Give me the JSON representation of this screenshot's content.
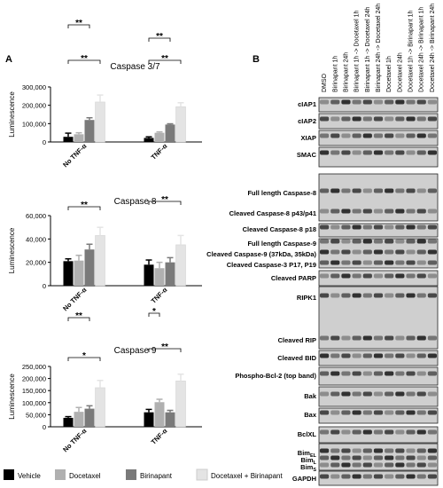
{
  "panel_a_letter": "A",
  "panel_b_letter": "B",
  "chart_data": [
    {
      "type": "bar",
      "title": "Caspase 3/7",
      "ylabel": "Luminescence",
      "groups": [
        "No TNF-α",
        "TNF-α"
      ],
      "series": [
        {
          "name": "Vehicle",
          "values": [
            28000,
            22000
          ],
          "errors": [
            20000,
            6000
          ]
        },
        {
          "name": "Docetaxel",
          "values": [
            42000,
            50000
          ],
          "errors": [
            8000,
            5000
          ]
        },
        {
          "name": "Birinapant",
          "values": [
            120000,
            95000
          ],
          "errors": [
            12000,
            4000
          ]
        },
        {
          "name": "Docetaxel + Birinapant",
          "values": [
            218000,
            192000
          ],
          "errors": [
            38000,
            22000
          ]
        }
      ],
      "ylim": [
        0,
        300000
      ],
      "yticks": [
        "0",
        "100,000",
        "200,000",
        "300,000"
      ],
      "significance": [
        "**",
        "**",
        "**",
        "**"
      ]
    },
    {
      "type": "bar",
      "title": "Caspase 8",
      "ylabel": "Luminescence",
      "groups": [
        "No TNF-α",
        "TNF-α"
      ],
      "series": [
        {
          "name": "Vehicle",
          "values": [
            21000,
            18000
          ],
          "errors": [
            2000,
            4000
          ]
        },
        {
          "name": "Docetaxel",
          "values": [
            21500,
            15000
          ],
          "errors": [
            4500,
            5000
          ]
        },
        {
          "name": "Birinapant",
          "values": [
            31000,
            20000
          ],
          "errors": [
            4500,
            4000
          ]
        },
        {
          "name": "Docetaxel + Birinapant",
          "values": [
            43000,
            35000
          ],
          "errors": [
            7000,
            8000
          ]
        }
      ],
      "ylim": [
        0,
        60000
      ],
      "yticks": [
        "0",
        "20,000",
        "40,000",
        "60,000"
      ],
      "significance": [
        "**",
        "**"
      ]
    },
    {
      "type": "bar",
      "title": "Caspase 9",
      "ylabel": "Luminescence",
      "groups": [
        "No TNF-α",
        "TNF-α"
      ],
      "series": [
        {
          "name": "Vehicle",
          "values": [
            37000,
            60000
          ],
          "errors": [
            5000,
            12000
          ]
        },
        {
          "name": "Docetaxel",
          "values": [
            62000,
            102000
          ],
          "errors": [
            18000,
            12000
          ]
        },
        {
          "name": "Birinapant",
          "values": [
            75000,
            60000
          ],
          "errors": [
            12000,
            8000
          ]
        },
        {
          "name": "Docetaxel + Birinapant",
          "values": [
            162000,
            190000
          ],
          "errors": [
            30000,
            28000
          ]
        }
      ],
      "ylim": [
        0,
        250000
      ],
      "yticks": [
        "0",
        "50,000",
        "100,000",
        "150,000",
        "200,000",
        "250,000"
      ],
      "significance": [
        "*",
        "**",
        "*",
        "**"
      ]
    }
  ],
  "legend": [
    {
      "label": "Vehicle",
      "color": "#000000"
    },
    {
      "label": "Docetaxel",
      "color": "#b0b0b0"
    },
    {
      "label": "Birinapant",
      "color": "#7a7a7a"
    },
    {
      "label": "Docetaxel + Birinapant",
      "color": "#e4e4e4"
    }
  ],
  "blot": {
    "lanes": [
      "DMSO",
      "Birinapant 1h",
      "Birinapant 24h",
      "Birinapant 1h -> Docetaxel 1h",
      "Birinapant 1h -> Docetaxel 24h",
      "Birinapant 24h -> Docetaxel 24h",
      "Docetaxel 1h",
      "Docetaxel 24h",
      "Docetaxel 1h -> Birinapant 1h",
      "Docetaxel 24h -> Birinapant 1h",
      "Docetaxel 24h -> Birinapant 24h"
    ],
    "rows": [
      {
        "label": "cIAP1"
      },
      {
        "label": "cIAP2"
      },
      {
        "label": "XIAP"
      },
      {
        "label": "SMAC"
      },
      {
        "label": "Full length Caspase-8"
      },
      {
        "label": "Cleaved Caspase-8 p43/p41"
      },
      {
        "label": "Cleaved Caspase-8 p18"
      },
      {
        "label": "Full length Caspase-9"
      },
      {
        "label": "Cleaved Caspase-9 (37kDa, 35kDa)"
      },
      {
        "label": "Cleaved Caspase-3 P17, P19"
      },
      {
        "label": "Cleaved PARP"
      },
      {
        "label": "RIPK1"
      },
      {
        "label": "Cleaved RIP"
      },
      {
        "label": "Cleaved BID"
      },
      {
        "label": "Phospho-Bcl-2 (top band)"
      },
      {
        "label": "Bak"
      },
      {
        "label": "Bax"
      },
      {
        "label": "BclXL"
      },
      {
        "label": "Bim",
        "sub": "EL"
      },
      {
        "label": "Bim",
        "sub": "L"
      },
      {
        "label": "Bim",
        "sub": "S"
      },
      {
        "label": "GAPDH"
      }
    ]
  }
}
